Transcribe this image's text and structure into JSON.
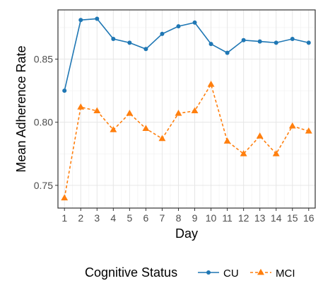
{
  "chart_data": {
    "type": "line",
    "xlabel": "Day",
    "ylabel": "Mean Adherence Rate",
    "x": [
      1,
      2,
      3,
      4,
      5,
      6,
      7,
      8,
      9,
      10,
      11,
      12,
      13,
      14,
      15,
      16
    ],
    "x_tick_labels": [
      "1",
      "2",
      "3",
      "4",
      "5",
      "6",
      "7",
      "8",
      "9",
      "10",
      "11",
      "12",
      "13",
      "14",
      "15",
      "16"
    ],
    "xlim": [
      0.6,
      16.4
    ],
    "ylim": [
      0.732,
      0.889
    ],
    "y_ticks": [
      0.75,
      0.8,
      0.85
    ],
    "y_tick_labels": [
      "0.75",
      "0.80",
      "0.85"
    ],
    "grid": true,
    "legend_position": "bottom",
    "legend_title": "Cognitive Status",
    "series": [
      {
        "name": "CU",
        "color": "#1f77b4",
        "marker": "circle",
        "line_style": "solid",
        "values": [
          0.825,
          0.881,
          0.882,
          0.866,
          0.863,
          0.858,
          0.87,
          0.876,
          0.879,
          0.862,
          0.855,
          0.865,
          0.864,
          0.863,
          0.866,
          0.863
        ]
      },
      {
        "name": "MCI",
        "color": "#ff7f0e",
        "marker": "triangle",
        "line_style": "dashed",
        "values": [
          0.74,
          0.812,
          0.809,
          0.794,
          0.807,
          0.795,
          0.787,
          0.807,
          0.809,
          0.83,
          0.785,
          0.775,
          0.789,
          0.775,
          0.797,
          0.793
        ]
      }
    ]
  }
}
